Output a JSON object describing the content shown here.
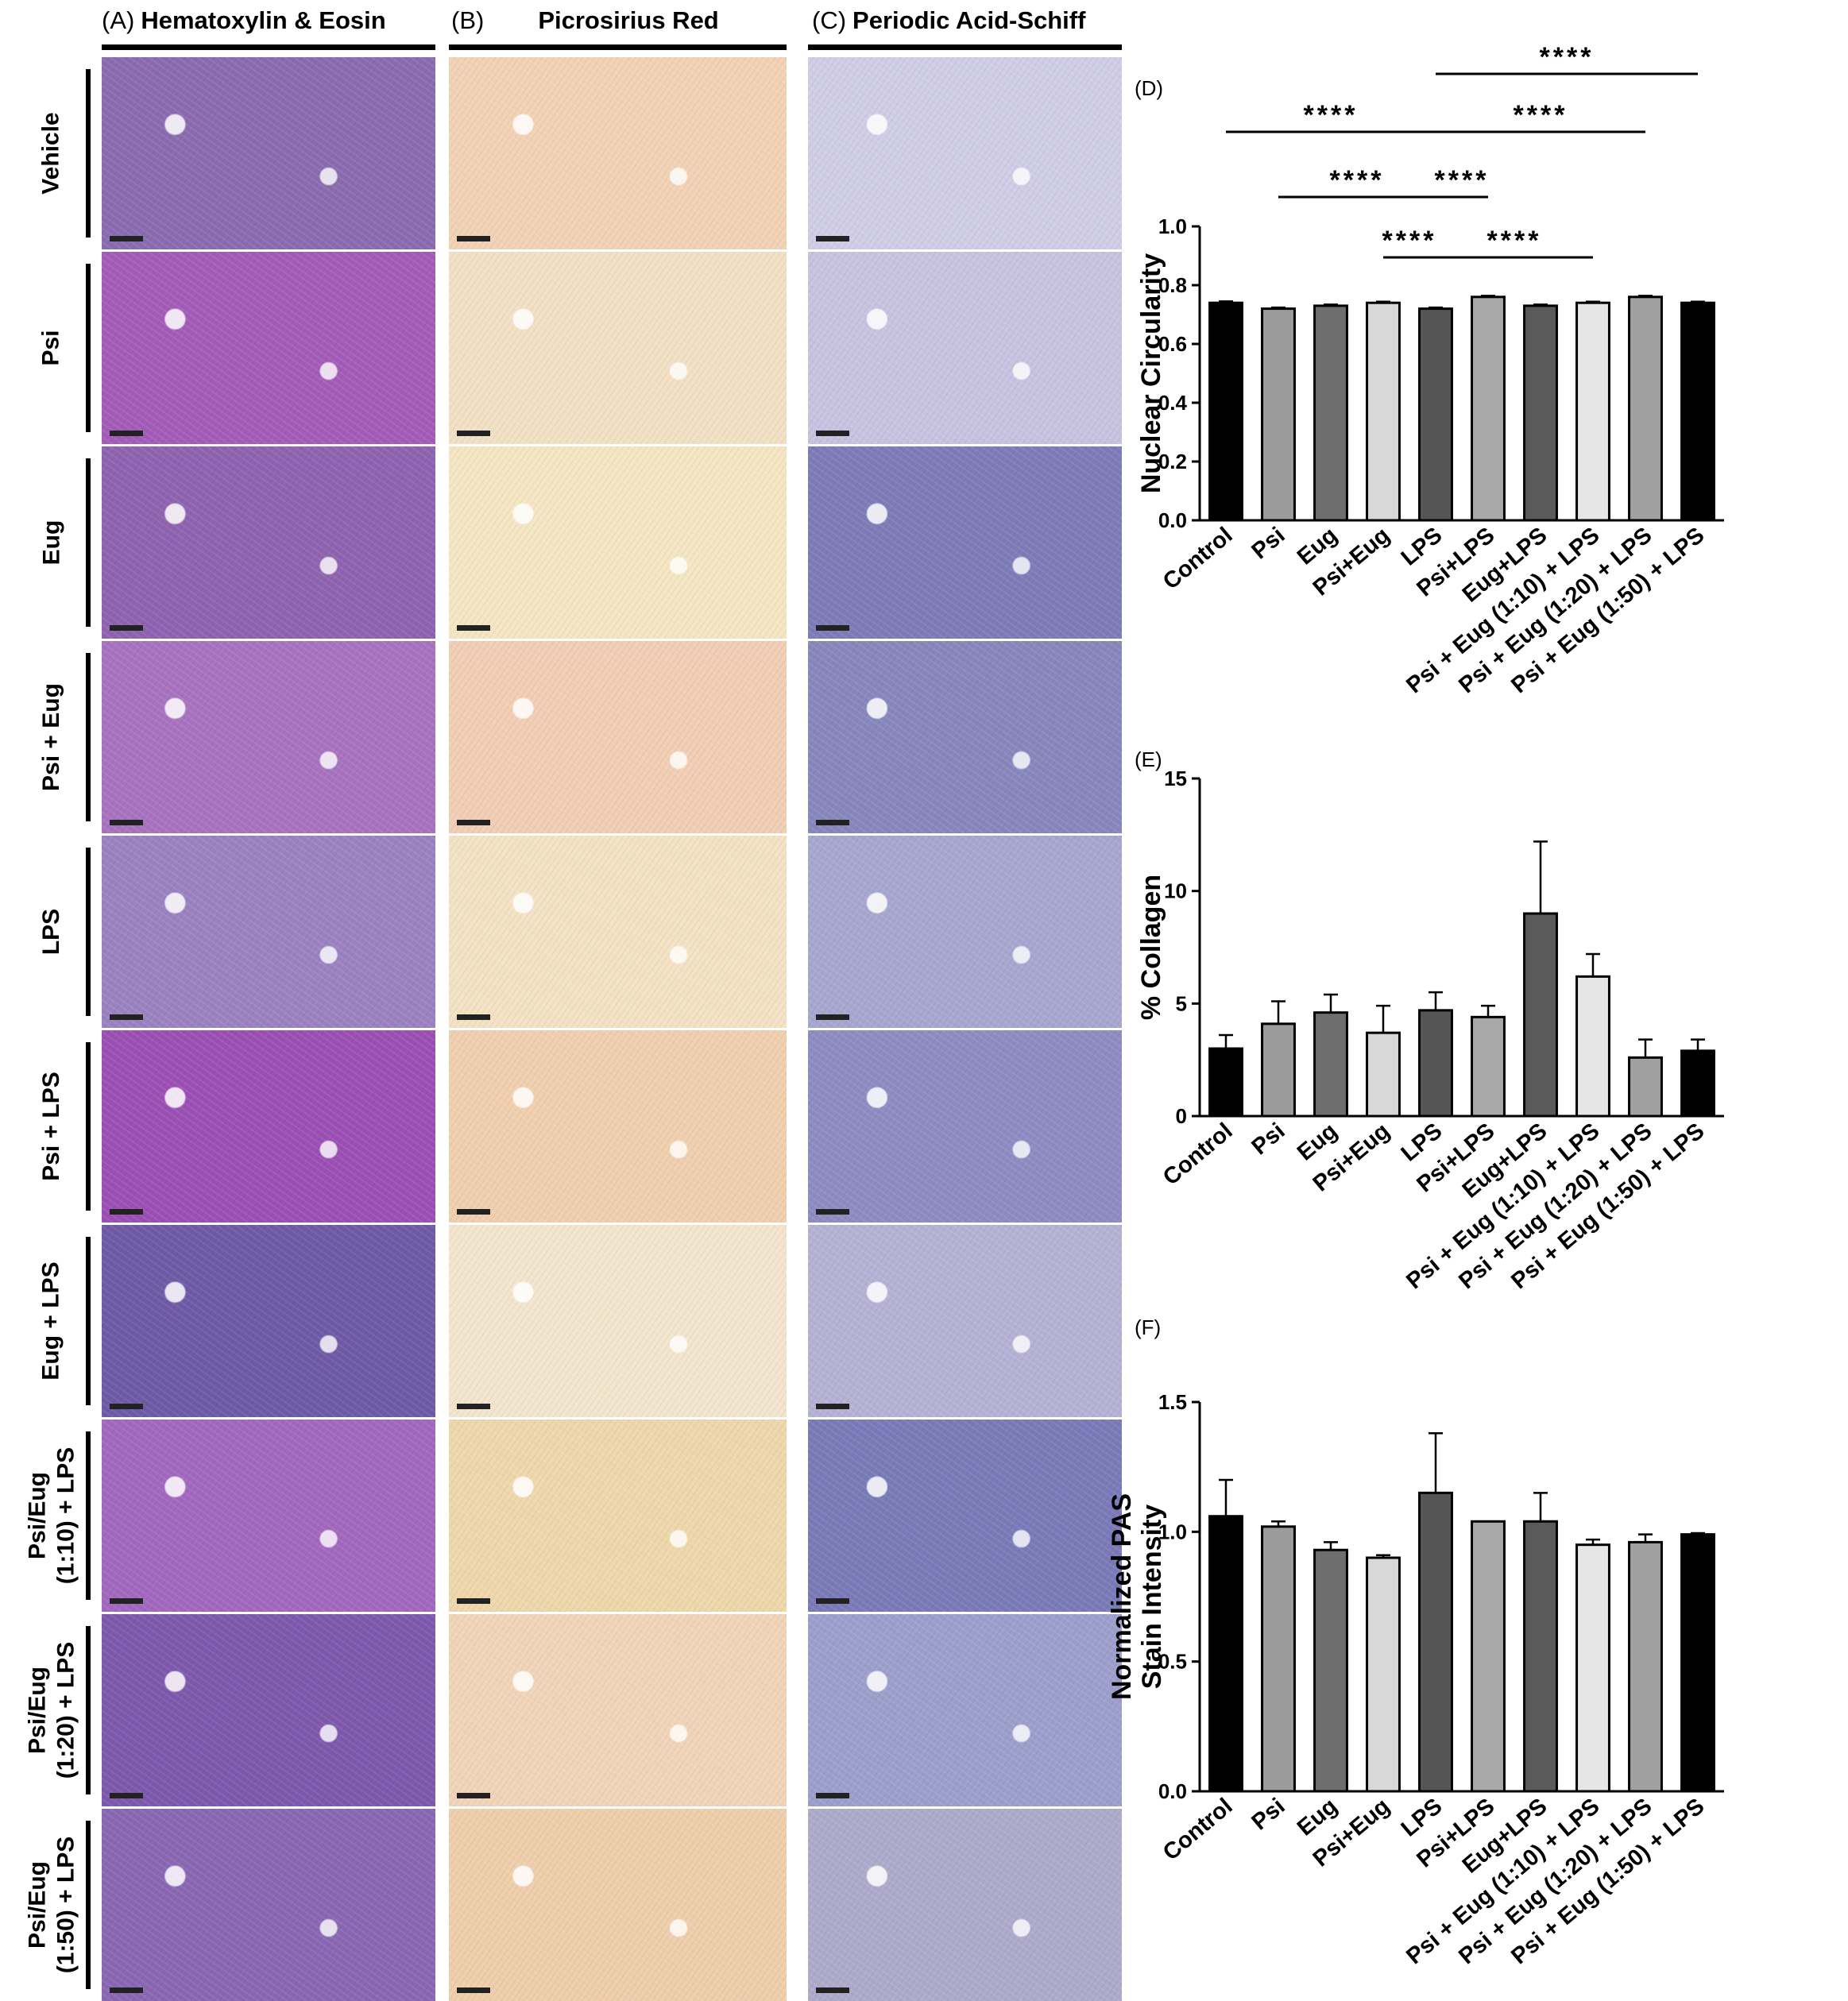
{
  "panels": {
    "A": {
      "letter": "(A)",
      "title": "Hematoxylin & Eosin",
      "color": "#9a6db4"
    },
    "B": {
      "letter": "(B)",
      "title": "Picrosirius Red",
      "color": "#f0cfae"
    },
    "C": {
      "letter": "(C)",
      "title": "Periodic Acid-Schiff",
      "color": "#8f8fc2"
    }
  },
  "rows": [
    {
      "label": "Vehicle"
    },
    {
      "label": "Psi"
    },
    {
      "label": "Eug"
    },
    {
      "label": "Psi + Eug"
    },
    {
      "label": "LPS"
    },
    {
      "label": "Psi + LPS"
    },
    {
      "label": "Eug + LPS"
    },
    {
      "label": "Psi/Eug\n(1:10) + LPS"
    },
    {
      "label": "Psi/Eug\n(1:20) + LPS"
    },
    {
      "label": "Psi/Eug\n(1:50) + LPS"
    }
  ],
  "tile_colors": {
    "A": [
      "#8a6bb0",
      "#a35bb8",
      "#8e63b0",
      "#a772bf",
      "#9a82c0",
      "#9b4fb5",
      "#6e5aa6",
      "#a267be",
      "#7d58ad",
      "#8a67b2"
    ],
    "B": [
      "#f2d2b4",
      "#f2e0c4",
      "#f4e6c2",
      "#f1ceb4",
      "#f3e2c4",
      "#f0cfae",
      "#f3e5cd",
      "#efd7ac",
      "#f1d4b8",
      "#efceac"
    ],
    "C": [
      "#cfcce6",
      "#c6c2e0",
      "#7d7cb8",
      "#8887bd",
      "#a6a6cf",
      "#8e8cc2",
      "#b5b1d4",
      "#7a7ab8",
      "#9c9ecc",
      "#aeaacb"
    ]
  },
  "chart_data": [
    {
      "id": "D",
      "panel_label": "(D)",
      "type": "bar",
      "title": "",
      "ylabel": "Nuclear Circularity",
      "xlabel": "",
      "ylim": [
        0,
        1.0
      ],
      "yticks": [
        "0.0",
        "0.2",
        "0.4",
        "0.6",
        "0.8",
        "1.0"
      ],
      "categories": [
        "Control",
        "Psi",
        "Eug",
        "Psi+Eug",
        "LPS",
        "Psi+LPS",
        "Eug+LPS",
        "Psi + Eug (1:10) + LPS",
        "Psi + Eug (1:20) + LPS",
        "Psi + Eug (1:50) + LPS"
      ],
      "values": [
        0.74,
        0.72,
        0.73,
        0.74,
        0.72,
        0.76,
        0.73,
        0.74,
        0.76,
        0.74
      ],
      "errors": [
        0.005,
        0.004,
        0.004,
        0.004,
        0.004,
        0.004,
        0.004,
        0.004,
        0.004,
        0.004
      ],
      "colors": [
        "#000000",
        "#9b9b9b",
        "#6e6e6e",
        "#d8d8d8",
        "#555555",
        "#a8a8a8",
        "#5a5a5a",
        "#e6e6e6",
        "#a0a0a0",
        "#000000"
      ],
      "significance": [
        {
          "from": "LPS",
          "to": "Psi + Eug (1:50) + LPS",
          "label": "****"
        },
        {
          "from": "Control",
          "to": "LPS",
          "label": "****"
        },
        {
          "from": "LPS",
          "to": "Psi + Eug (1:20) + LPS",
          "label": "****"
        },
        {
          "from": "Psi",
          "to": "LPS",
          "label": "****"
        },
        {
          "from": "LPS",
          "to": "Psi+LPS",
          "label": "****"
        },
        {
          "from": "Psi+Eug",
          "to": "LPS",
          "label": "****"
        },
        {
          "from": "LPS",
          "to": "Psi + Eug (1:10) + LPS",
          "label": "****"
        }
      ]
    },
    {
      "id": "E",
      "panel_label": "(E)",
      "type": "bar",
      "title": "",
      "ylabel": "% Collagen",
      "xlabel": "",
      "ylim": [
        0,
        15
      ],
      "yticks": [
        "0",
        "5",
        "10",
        "15"
      ],
      "categories": [
        "Control",
        "Psi",
        "Eug",
        "Psi+Eug",
        "LPS",
        "Psi+LPS",
        "Eug+LPS",
        "Psi + Eug (1:10) + LPS",
        "Psi + Eug (1:20) + LPS",
        "Psi + Eug (1:50) + LPS"
      ],
      "values": [
        3.0,
        4.1,
        4.6,
        3.7,
        4.7,
        4.4,
        9.0,
        6.2,
        2.6,
        2.9
      ],
      "errors": [
        0.6,
        1.0,
        0.8,
        1.2,
        0.8,
        0.5,
        3.2,
        1.0,
        0.8,
        0.5
      ],
      "colors": [
        "#000000",
        "#9b9b9b",
        "#6e6e6e",
        "#d8d8d8",
        "#555555",
        "#a8a8a8",
        "#5a5a5a",
        "#e6e6e6",
        "#a0a0a0",
        "#000000"
      ],
      "significance": []
    },
    {
      "id": "F",
      "panel_label": "(F)",
      "type": "bar",
      "title": "",
      "ylabel": "Normalized PAS\nStain Intensity",
      "xlabel": "",
      "ylim": [
        0,
        1.5
      ],
      "yticks": [
        "0.0",
        "0.5",
        "1.0",
        "1.5"
      ],
      "categories": [
        "Control",
        "Psi",
        "Eug",
        "Psi+Eug",
        "LPS",
        "Psi+LPS",
        "Eug+LPS",
        "Psi + Eug (1:10) + LPS",
        "Psi + Eug (1:20) + LPS",
        "Psi + Eug (1:50) + LPS"
      ],
      "values": [
        1.06,
        1.02,
        0.93,
        0.9,
        1.15,
        1.04,
        1.04,
        0.95,
        0.96,
        0.99
      ],
      "errors": [
        0.14,
        0.02,
        0.03,
        0.01,
        0.23,
        0.0,
        0.11,
        0.02,
        0.03,
        0.005
      ],
      "colors": [
        "#000000",
        "#9b9b9b",
        "#6e6e6e",
        "#d8d8d8",
        "#555555",
        "#a8a8a8",
        "#5a5a5a",
        "#e6e6e6",
        "#a0a0a0",
        "#000000"
      ],
      "significance": []
    }
  ]
}
